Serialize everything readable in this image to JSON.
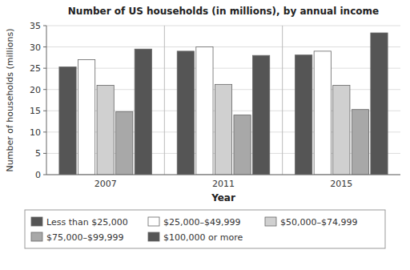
{
  "chart_data": {
    "type": "bar",
    "title": "Number of US households (in millions), by annual income",
    "xlabel": "Year",
    "ylabel": "Number of households (millions)",
    "categories": [
      "2007",
      "2011",
      "2015"
    ],
    "series": [
      {
        "name": "Less than $25,000",
        "color": "#555555",
        "values": [
          25.3,
          29.0,
          28.1
        ]
      },
      {
        "name": "$25,000–$49,999",
        "color": "#ffffff",
        "values": [
          27.0,
          30.0,
          29.0
        ]
      },
      {
        "name": "$50,000–$74,999",
        "color": "#d0d0d0",
        "values": [
          21.0,
          21.2,
          21.0
        ]
      },
      {
        "name": "$75,000–$99,999",
        "color": "#a8a8a8",
        "values": [
          14.8,
          14.0,
          15.3
        ]
      },
      {
        "name": "$100,000 or more",
        "color": "#555555",
        "values": [
          29.5,
          28.0,
          33.3
        ]
      }
    ],
    "ylim": [
      0,
      35
    ],
    "yticks": [
      0,
      5,
      10,
      15,
      20,
      25,
      30,
      35
    ],
    "grid": true,
    "legend": "bottom"
  }
}
